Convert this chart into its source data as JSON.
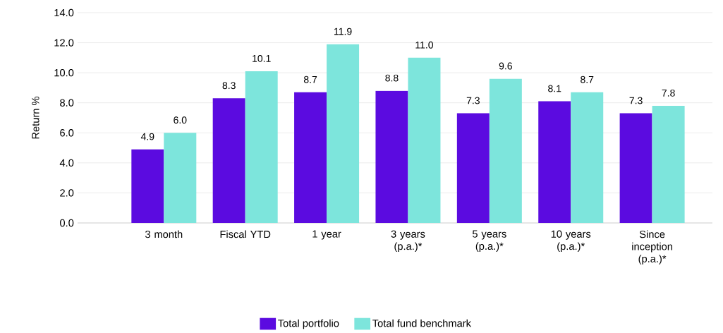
{
  "chart_data": {
    "type": "bar",
    "ylabel": "Return %",
    "categories": [
      "3 month",
      "Fiscal YTD",
      "1 year",
      "3 years (p.a.)*",
      "5 years (p.a.)*",
      "10 years (p.a.)*",
      "Since inception (p.a.)*"
    ],
    "series": [
      {
        "name": "Total portfolio",
        "color": "#5b0be0",
        "values": [
          4.9,
          8.3,
          8.7,
          8.8,
          7.3,
          8.1,
          7.3
        ],
        "value_labels": [
          "4.9",
          "8.3",
          "8.7",
          "8.8",
          "7.3",
          "8.1",
          "7.3"
        ]
      },
      {
        "name": "Total fund benchmark",
        "color": "#7de5dc",
        "values": [
          6.0,
          10.1,
          11.9,
          11.0,
          9.6,
          8.7,
          7.8
        ],
        "value_labels": [
          "6.0",
          "10.1",
          "11.9",
          "11.0",
          "9.6",
          "8.7",
          "7.8"
        ]
      }
    ],
    "ylim": [
      0,
      14
    ],
    "yticks": [
      {
        "value": 0,
        "label": "0.0"
      },
      {
        "value": 2,
        "label": "2.0"
      },
      {
        "value": 4,
        "label": "4.0"
      },
      {
        "value": 6,
        "label": "6.0"
      },
      {
        "value": 8,
        "label": "8.0"
      },
      {
        "value": 10,
        "label": "10.0"
      },
      {
        "value": 12,
        "label": "12.0"
      },
      {
        "value": 14,
        "label": "14.0"
      }
    ],
    "grid": "y",
    "legend": "bottom"
  }
}
